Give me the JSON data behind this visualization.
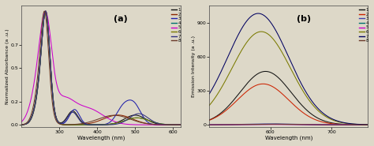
{
  "panel_a": {
    "title": "(a)",
    "xlabel": "Wavelength (nm)",
    "ylabel": "Normalized Absorbance (a .u.)",
    "xlim": [
      200,
      620
    ],
    "ylim": [
      -0.02,
      1.05
    ],
    "xticks": [
      300,
      400,
      500,
      600
    ],
    "yticks": [
      0.0,
      0.2,
      0.5,
      0.7
    ],
    "legend_labels": [
      "1",
      "2",
      "3",
      "4",
      "5",
      "6",
      "7",
      "8"
    ],
    "colors": [
      "#111111",
      "#8B2500",
      "#2020AA",
      "#007070",
      "#CC00CC",
      "#7A7A00",
      "#303080",
      "#6B3A2A"
    ]
  },
  "panel_b": {
    "title": "(b)",
    "xlabel": "Wavelength (nm)",
    "ylabel": "Emission Intensity (a .u.)",
    "xlim": [
      500,
      760
    ],
    "ylim": [
      -20,
      1050
    ],
    "xticks": [
      600,
      700
    ],
    "yticks": [
      0,
      300,
      600,
      900
    ],
    "legend_labels": [
      "1",
      "2",
      "3",
      "4",
      "5",
      "6",
      "7",
      "8"
    ],
    "colors": [
      "#111111",
      "#CC2200",
      "#4040AA",
      "#007070",
      "#CC00CC",
      "#7A7A00",
      "#000060",
      "#6B3A2A"
    ]
  },
  "bg_color": "#ddd8c8",
  "figsize": [
    4.74,
    1.85
  ],
  "dpi": 100
}
